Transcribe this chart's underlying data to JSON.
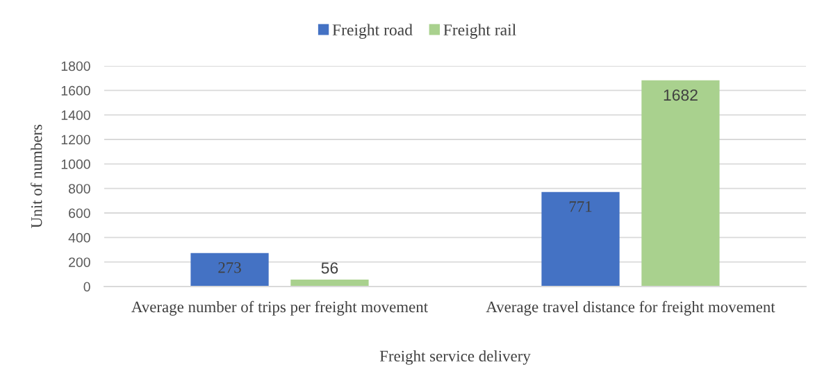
{
  "chart_data": {
    "type": "bar",
    "xlabel": "Freight service delivery",
    "ylabel": "Unit of numbers",
    "categories": [
      "Average number of trips per freight movement",
      "Average travel distance for freight movement"
    ],
    "series": [
      {
        "name": "Freight road",
        "color": "#4472c4",
        "values": [
          273,
          771
        ]
      },
      {
        "name": "Freight rail",
        "color": "#a9d18e",
        "values": [
          56,
          1682
        ]
      }
    ],
    "ylim": [
      0,
      1800
    ],
    "yticks": [
      0,
      200,
      400,
      600,
      800,
      1000,
      1200,
      1400,
      1600,
      1800
    ],
    "grid": "y",
    "legend": "top",
    "data_labels": true
  }
}
